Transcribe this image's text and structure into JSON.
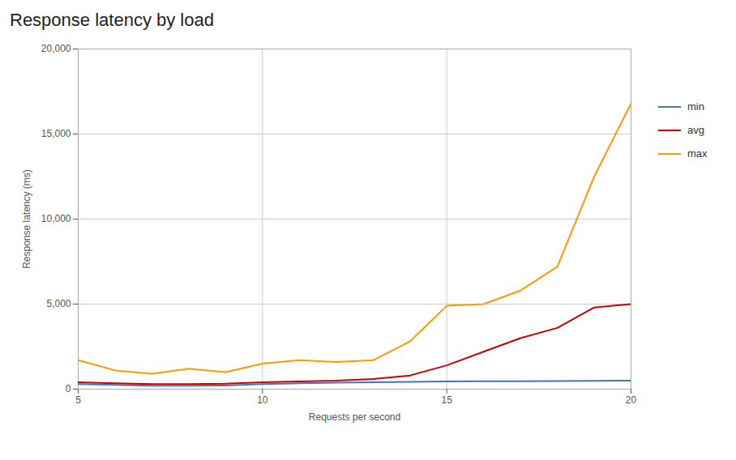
{
  "chart_data": {
    "type": "line",
    "title": "Response latency by load",
    "xlabel": "Requests per second",
    "ylabel": "Response latency (ms)",
    "x": [
      5,
      6,
      7,
      8,
      9,
      10,
      11,
      12,
      13,
      14,
      15,
      16,
      17,
      18,
      19,
      20
    ],
    "series": [
      {
        "name": "min",
        "color": "#4472c4",
        "values": [
          300,
          250,
          200,
          200,
          220,
          300,
          350,
          380,
          400,
          430,
          450,
          460,
          470,
          480,
          490,
          500
        ]
      },
      {
        "name": "avg",
        "color": "#cc0000",
        "values": [
          400,
          350,
          300,
          300,
          320,
          400,
          450,
          500,
          600,
          800,
          1400,
          2200,
          3000,
          3600,
          4800,
          5000
        ]
      },
      {
        "name": "max",
        "color": "#ff9900",
        "values": [
          1700,
          1100,
          900,
          1200,
          1000,
          1500,
          1700,
          1600,
          1700,
          2800,
          4900,
          5000,
          5800,
          7200,
          12500,
          16800
        ]
      }
    ],
    "xlim": [
      5,
      20
    ],
    "ylim": [
      0,
      20000
    ],
    "xticks": [
      5,
      10,
      15,
      20
    ],
    "yticks": [
      0,
      {
        "value": 5000,
        "label": "5,000"
      },
      {
        "value": 10000,
        "label": "10,000"
      },
      {
        "value": 15000,
        "label": "15,000"
      },
      {
        "value": 20000,
        "label": "20,000"
      }
    ],
    "grid": true,
    "legend": "right"
  }
}
